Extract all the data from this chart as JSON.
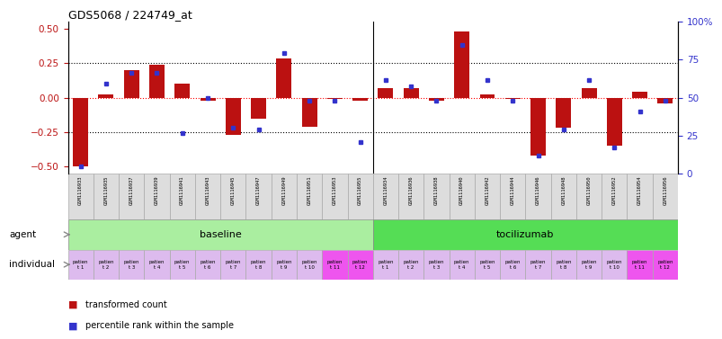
{
  "title": "GDS5068 / 224749_at",
  "samples": [
    "GSM1116933",
    "GSM1116935",
    "GSM1116937",
    "GSM1116939",
    "GSM1116941",
    "GSM1116943",
    "GSM1116945",
    "GSM1116947",
    "GSM1116949",
    "GSM1116951",
    "GSM1116953",
    "GSM1116955",
    "GSM1116934",
    "GSM1116936",
    "GSM1116938",
    "GSM1116940",
    "GSM1116942",
    "GSM1116944",
    "GSM1116946",
    "GSM1116948",
    "GSM1116950",
    "GSM1116952",
    "GSM1116954",
    "GSM1116956"
  ],
  "red_bars": [
    -0.5,
    0.02,
    0.2,
    0.24,
    0.1,
    -0.02,
    -0.27,
    -0.15,
    0.28,
    -0.21,
    -0.01,
    -0.02,
    0.07,
    0.07,
    -0.02,
    0.48,
    0.02,
    -0.01,
    -0.42,
    -0.22,
    0.07,
    -0.35,
    0.04,
    -0.04
  ],
  "blue_dots": [
    0,
    60,
    68,
    68,
    24,
    50,
    28,
    27,
    82,
    48,
    48,
    18,
    63,
    58,
    48,
    88,
    63,
    48,
    8,
    27,
    63,
    14,
    40,
    48
  ],
  "individual_labels": [
    "patien\nt 1",
    "patien\nt 2",
    "patien\nt 3",
    "patien\nt 4",
    "patien\nt 5",
    "patien\nt 6",
    "patien\nt 7",
    "patien\nt 8",
    "patien\nt 9",
    "patien\nt 10",
    "patien\nt 11",
    "patien\nt 12",
    "patien\nt 1",
    "patien\nt 2",
    "patien\nt 3",
    "patien\nt 4",
    "patien\nt 5",
    "patien\nt 6",
    "patien\nt 7",
    "patien\nt 8",
    "patien\nt 9",
    "patien\nt 10",
    "patien\nt 11",
    "patien\nt 12"
  ],
  "highlight_indices": [
    10,
    11,
    22,
    23
  ],
  "ylim": [
    -0.55,
    0.55
  ],
  "yticks": [
    -0.5,
    -0.25,
    0,
    0.25,
    0.5
  ],
  "right_yticks": [
    0,
    25,
    50,
    75,
    100
  ],
  "bar_color": "#bb1111",
  "dot_color": "#3333cc",
  "baseline_color": "#aaeea0",
  "tocilizumab_color": "#55dd55",
  "sample_box_color": "#dddddd",
  "individual_normal_color": "#ddbbee",
  "individual_highlight_color": "#ee55ee",
  "legend_red": "transformed count",
  "legend_blue": "percentile rank within the sample"
}
